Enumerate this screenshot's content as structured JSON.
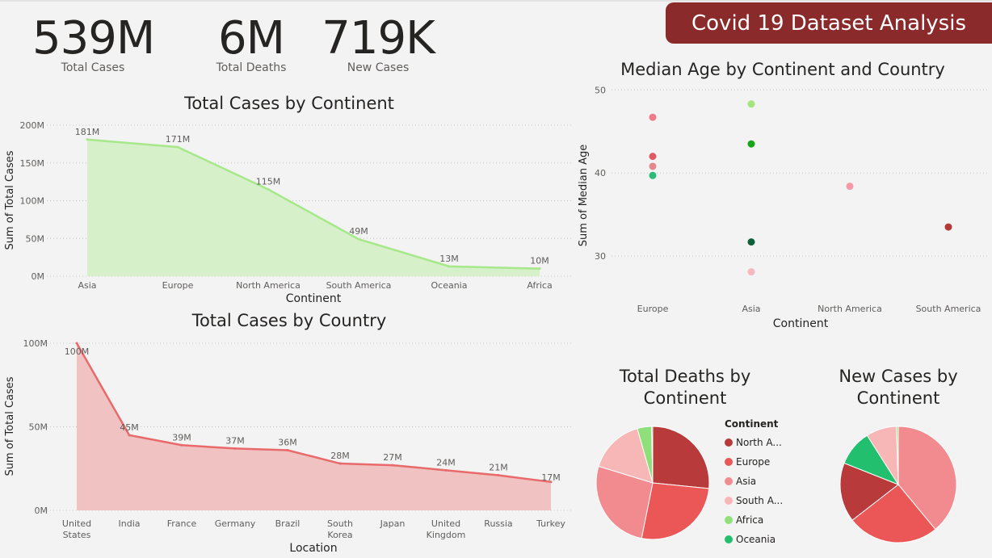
{
  "banner": {
    "title": "Covid 19 Dataset Analysis"
  },
  "kpis": [
    {
      "value": "539M",
      "label": "Total Cases"
    },
    {
      "value": "6M",
      "label": "Total Deaths"
    },
    {
      "value": "719K",
      "label": "New Cases"
    }
  ],
  "colors": {
    "banner": "#8b2a2a",
    "continent_area": "#a6e88a",
    "country_area": "#e86a6a"
  },
  "chart_data": [
    {
      "id": "continent",
      "type": "area",
      "title": "Total Cases by Continent",
      "xlabel": "Continent",
      "ylabel": "Sum of Total Cases",
      "categories": [
        "Asia",
        "Europe",
        "North America",
        "South America",
        "Oceania",
        "Africa"
      ],
      "values": [
        181,
        171,
        115,
        49,
        13,
        10
      ],
      "data_labels": [
        "181M",
        "171M",
        "115M",
        "49M",
        "13M",
        "10M"
      ],
      "unit": "M",
      "yticks": [
        0,
        50,
        100,
        150,
        200
      ],
      "ytick_labels": [
        "0M",
        "50M",
        "100M",
        "150M",
        "200M"
      ],
      "ylim": [
        0,
        200
      ],
      "grid": true
    },
    {
      "id": "country",
      "type": "area",
      "title": "Total Cases by Country",
      "xlabel": "Location",
      "ylabel": "Sum of Total Cases",
      "categories": [
        "United States",
        "India",
        "France",
        "Germany",
        "Brazil",
        "South Korea",
        "Japan",
        "United Kingdom",
        "Russia",
        "Turkey"
      ],
      "category_lines": [
        [
          "United",
          "States"
        ],
        [
          "India"
        ],
        [
          "France"
        ],
        [
          "Germany"
        ],
        [
          "Brazil"
        ],
        [
          "South",
          "Korea"
        ],
        [
          "Japan"
        ],
        [
          "United",
          "Kingdom"
        ],
        [
          "Russia"
        ],
        [
          "Turkey"
        ]
      ],
      "values": [
        100,
        45,
        39,
        37,
        36,
        28,
        27,
        24,
        21,
        17
      ],
      "data_labels": [
        "100M",
        "45M",
        "39M",
        "37M",
        "36M",
        "28M",
        "27M",
        "24M",
        "21M",
        "17M"
      ],
      "unit": "M",
      "yticks": [
        0,
        50,
        100
      ],
      "ytick_labels": [
        "0M",
        "50M",
        "100M"
      ],
      "ylim": [
        0,
        100
      ],
      "grid": true
    },
    {
      "id": "median",
      "type": "scatter",
      "title": "Median Age by Continent and Country",
      "xlabel": "Continent",
      "ylabel": "Sum of Median Age",
      "categories": [
        "Europe",
        "Asia",
        "North America",
        "South America"
      ],
      "yticks": [
        30,
        40,
        50
      ],
      "ylim": [
        27,
        51
      ],
      "grid": true,
      "points": [
        {
          "x": "Europe",
          "y": 46.7,
          "color": "#ee7b86"
        },
        {
          "x": "Europe",
          "y": 42.0,
          "color": "#e05a66"
        },
        {
          "x": "Europe",
          "y": 40.8,
          "color": "#e3888d"
        },
        {
          "x": "Europe",
          "y": 39.7,
          "color": "#2dbb77"
        },
        {
          "x": "Asia",
          "y": 48.3,
          "color": "#a3e47f"
        },
        {
          "x": "Asia",
          "y": 43.5,
          "color": "#18a418"
        },
        {
          "x": "Asia",
          "y": 31.7,
          "color": "#0e5f3a"
        },
        {
          "x": "Asia",
          "y": 28.1,
          "color": "#f7b7bf"
        },
        {
          "x": "North America",
          "y": 38.4,
          "color": "#f39aa6"
        },
        {
          "x": "South America",
          "y": 33.5,
          "color": "#b33939"
        }
      ]
    },
    {
      "id": "deaths_pie",
      "type": "pie",
      "title": "Total Deaths by Continent",
      "title_lines": [
        "Total Deaths by",
        "Continent"
      ],
      "labels": [
        "North America",
        "Europe",
        "Asia",
        "South America",
        "Africa",
        "Oceania"
      ],
      "values": [
        26.0,
        26.0,
        26.0,
        15.5,
        4.0,
        0.3
      ],
      "colors": [
        "#b83a3a",
        "#eb5757",
        "#f28b8f",
        "#f7b7b7",
        "#8fe07a",
        "#22bf6e"
      ]
    },
    {
      "id": "newcases_pie",
      "type": "pie",
      "title": "New Cases by Continent",
      "title_lines": [
        "New Cases by",
        "Continent"
      ],
      "labels": [
        "Asia",
        "Europe",
        "North America",
        "Oceania",
        "South America",
        "Africa"
      ],
      "values": [
        39.0,
        25.5,
        16.5,
        10.0,
        8.5,
        0.5
      ],
      "colors": [
        "#f28b8f",
        "#eb5757",
        "#b83a3a",
        "#22bf6e",
        "#f7b7b7",
        "#8fe07a"
      ]
    }
  ],
  "legend": {
    "title": "Continent",
    "items": [
      {
        "label": "North A...",
        "color": "#b83a3a"
      },
      {
        "label": "Europe",
        "color": "#eb5757"
      },
      {
        "label": "Asia",
        "color": "#f28b8f"
      },
      {
        "label": "South A...",
        "color": "#f7b7b7"
      },
      {
        "label": "Africa",
        "color": "#8fe07a"
      },
      {
        "label": "Oceania",
        "color": "#22bf6e"
      }
    ]
  }
}
